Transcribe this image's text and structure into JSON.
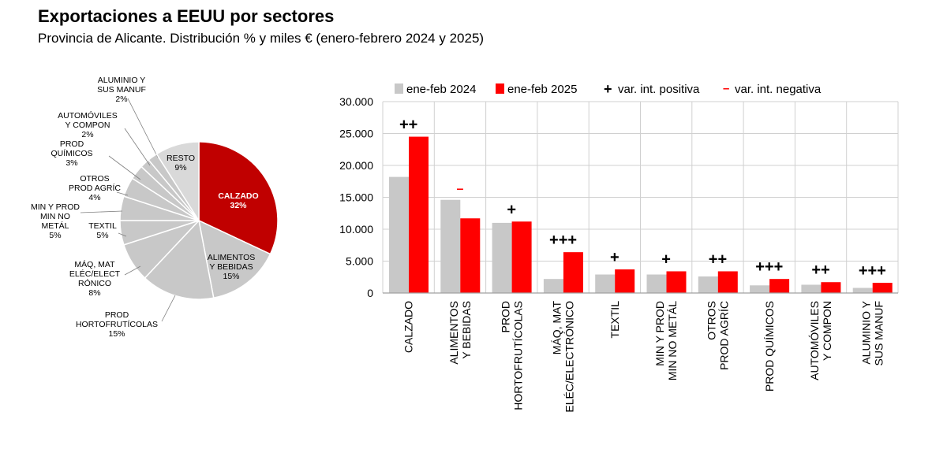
{
  "title": "Exportaciones a EEUU por sectores",
  "subtitle": "Provincia de Alicante. Distribución % y miles € (enero-febrero 2024 y 2025)",
  "colors": {
    "y2024": "#c8c8c8",
    "y2025": "#ff0000",
    "pie_main": "#c00000",
    "pie_other": "#c8c8c8",
    "pie_resto": "#d9d9d9",
    "grid": "#d0d0d0",
    "axis": "#a0a0a0"
  },
  "chart_data": [
    {
      "type": "pie",
      "slices": [
        {
          "label": [
            "CALZADO"
          ],
          "pct": "32%",
          "value": 32,
          "color": "#c00000"
        },
        {
          "label": [
            "ALIMENTOS",
            "Y BEBIDAS"
          ],
          "pct": "15%",
          "value": 15,
          "color": "#c8c8c8"
        },
        {
          "label": [
            "PROD",
            "HORTOFRUTÍCOLAS"
          ],
          "pct": "15%",
          "value": 15,
          "color": "#c8c8c8"
        },
        {
          "label": [
            "MÁQ, MAT",
            "ELÉC/ELECT",
            "RÓNICO"
          ],
          "pct": "8%",
          "value": 8,
          "color": "#c8c8c8"
        },
        {
          "label": [
            "TEXTIL"
          ],
          "pct": "5%",
          "value": 5,
          "color": "#c8c8c8"
        },
        {
          "label": [
            "MIN Y PROD",
            "MIN NO",
            "METÁL"
          ],
          "pct": "5%",
          "value": 5,
          "color": "#c8c8c8"
        },
        {
          "label": [
            "OTROS",
            "PROD AGRÍC"
          ],
          "pct": "4%",
          "value": 4,
          "color": "#c8c8c8"
        },
        {
          "label": [
            "PROD",
            "QUÍMICOS"
          ],
          "pct": "3%",
          "value": 3,
          "color": "#c8c8c8"
        },
        {
          "label": [
            "AUTOMÓVILES",
            "Y COMPON"
          ],
          "pct": "2%",
          "value": 2,
          "color": "#c8c8c8"
        },
        {
          "label": [
            "ALUMINIO Y",
            "SUS MANUF"
          ],
          "pct": "2%",
          "value": 2,
          "color": "#c8c8c8"
        },
        {
          "label": [
            "RESTO"
          ],
          "pct": "9%",
          "value": 9,
          "color": "#d9d9d9"
        }
      ]
    },
    {
      "type": "bar",
      "legend": [
        "ene-feb 2024",
        "ene-feb 2025",
        "var. int. positiva",
        "var. int. negativa"
      ],
      "legend_symbols": {
        "positive": "+",
        "negative": "–"
      },
      "categories": [
        [
          "CALZADO"
        ],
        [
          "ALIMENTOS",
          "Y BEBIDAS"
        ],
        [
          "PROD",
          "HORTOFRUTÍCOLAS"
        ],
        [
          "MÁQ, MAT",
          "ELÉC/ELECTRÓNICO"
        ],
        [
          "TEXTIL"
        ],
        [
          "MIN Y PROD",
          "MIN NO METÁL"
        ],
        [
          "OTROS",
          "PROD AGRÍC"
        ],
        [
          "PROD QUÍMICOS"
        ],
        [
          "AUTOMÓVILES",
          "Y COMPON"
        ],
        [
          "ALUMINIO Y",
          "SUS MANUF"
        ]
      ],
      "series": [
        {
          "name": "ene-feb 2024",
          "values": [
            18200,
            14600,
            11000,
            2200,
            2900,
            2900,
            2600,
            1200,
            1300,
            800
          ]
        },
        {
          "name": "ene-feb 2025",
          "values": [
            24500,
            11700,
            11200,
            6400,
            3700,
            3400,
            3400,
            2200,
            1700,
            1600
          ]
        }
      ],
      "variation": [
        "++",
        "–",
        "+",
        "+++",
        "+",
        "+",
        "++",
        "+++",
        "++",
        "+++"
      ],
      "y_ticks": [
        "0",
        "5.000",
        "10.000",
        "15.000",
        "20.000",
        "25.000",
        "30.000"
      ],
      "ylim": [
        0,
        30000
      ]
    }
  ]
}
